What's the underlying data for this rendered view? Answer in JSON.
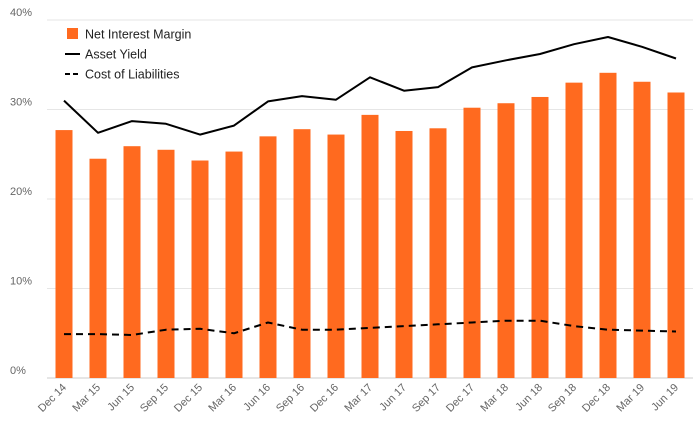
{
  "chart_data": {
    "type": "bar",
    "categories": [
      "Dec 14",
      "Mar 15",
      "Jun 15",
      "Sep 15",
      "Dec 15",
      "Mar 16",
      "Jun 16",
      "Sep 16",
      "Dec 16",
      "Mar 17",
      "Jun 17",
      "Sep 17",
      "Dec 17",
      "Mar 18",
      "Jun 18",
      "Sep 18",
      "Dec 18",
      "Mar 19",
      "Jun 19"
    ],
    "series": [
      {
        "name": "Net Interest Margin",
        "type": "bar",
        "color": "#ff6a1f",
        "values": [
          27.7,
          24.5,
          25.9,
          25.5,
          24.3,
          25.3,
          27.0,
          27.8,
          27.2,
          29.4,
          27.6,
          27.9,
          30.2,
          30.7,
          31.4,
          33.0,
          34.1,
          33.1,
          31.9
        ]
      },
      {
        "name": "Asset Yield",
        "type": "line",
        "style": "solid",
        "color": "#000000",
        "values": [
          31.0,
          27.4,
          28.7,
          28.4,
          27.2,
          28.2,
          30.9,
          31.5,
          31.1,
          33.6,
          32.1,
          32.5,
          34.7,
          35.5,
          36.2,
          37.3,
          38.1,
          37.0,
          35.7
        ]
      },
      {
        "name": "Cost of Liabilities",
        "type": "line",
        "style": "dashed",
        "color": "#000000",
        "values": [
          4.9,
          4.9,
          4.8,
          5.4,
          5.5,
          5.0,
          6.2,
          5.4,
          5.4,
          5.6,
          5.8,
          6.0,
          6.2,
          6.4,
          6.4,
          5.8,
          5.4,
          5.3,
          5.2
        ]
      }
    ],
    "y_ticks": [
      "0%",
      "10%",
      "20%",
      "30%",
      "40%"
    ],
    "ylim": [
      0,
      40
    ],
    "grid": true,
    "legend_position": "top-left",
    "title": "",
    "xlabel": "",
    "ylabel": ""
  }
}
